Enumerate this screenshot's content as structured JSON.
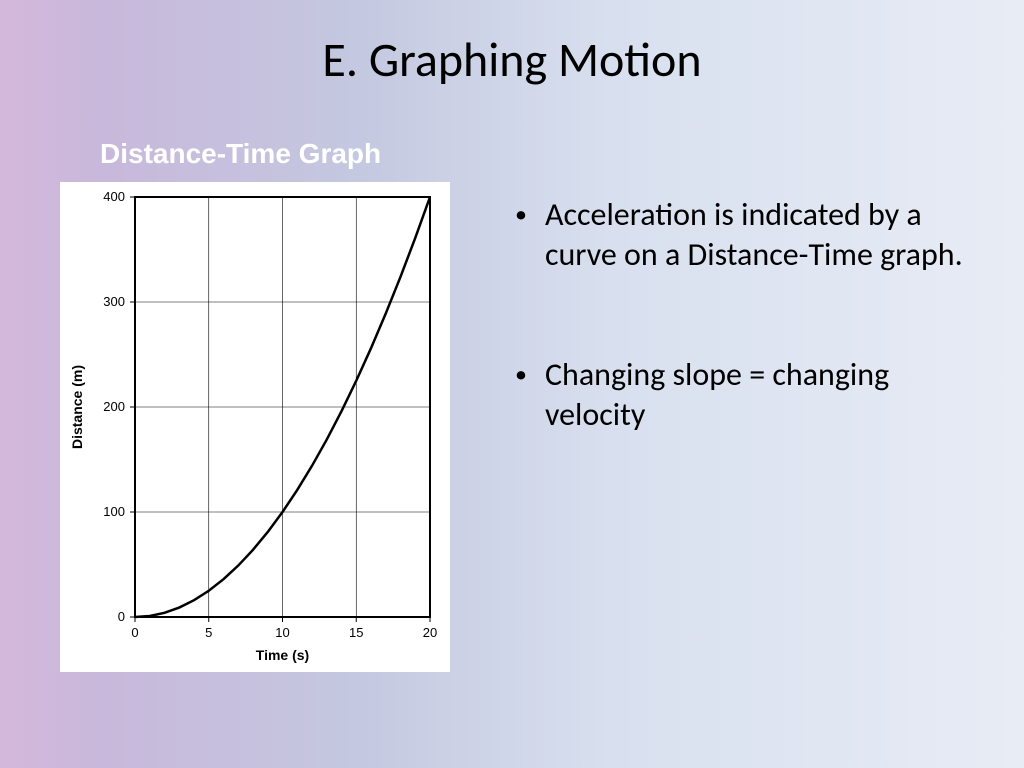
{
  "title": "E. Graphing Motion",
  "subtitle": "Distance-Time Graph",
  "bullets": [
    "Acceleration is indicated by a curve on a Distance-Time graph.",
    "Changing slope = changing velocity"
  ],
  "chart": {
    "type": "line",
    "xlabel": "Time (s)",
    "ylabel": "Distance (m)",
    "xlim": [
      0,
      20
    ],
    "ylim": [
      0,
      400
    ],
    "xticks": [
      0,
      5,
      10,
      15,
      20
    ],
    "yticks": [
      0,
      100,
      200,
      300,
      400
    ],
    "data_x": [
      0,
      1,
      2,
      3,
      4,
      5,
      6,
      7,
      8,
      9,
      10,
      11,
      12,
      13,
      14,
      15,
      16,
      17,
      18,
      19,
      20
    ],
    "data_y": [
      0,
      1,
      4,
      9,
      16,
      25,
      36,
      49,
      64,
      81,
      100,
      121,
      144,
      169,
      196,
      225,
      256,
      289,
      324,
      361,
      400
    ],
    "line_color": "#000000",
    "line_width": 2.5,
    "grid_color": "#000000",
    "grid_width": 0.6,
    "border_color": "#000000",
    "border_width": 2,
    "background_color": "#ffffff",
    "tick_fontsize": 13,
    "label_fontsize": 14,
    "label_fontweight": "bold",
    "font_family": "Arial"
  }
}
